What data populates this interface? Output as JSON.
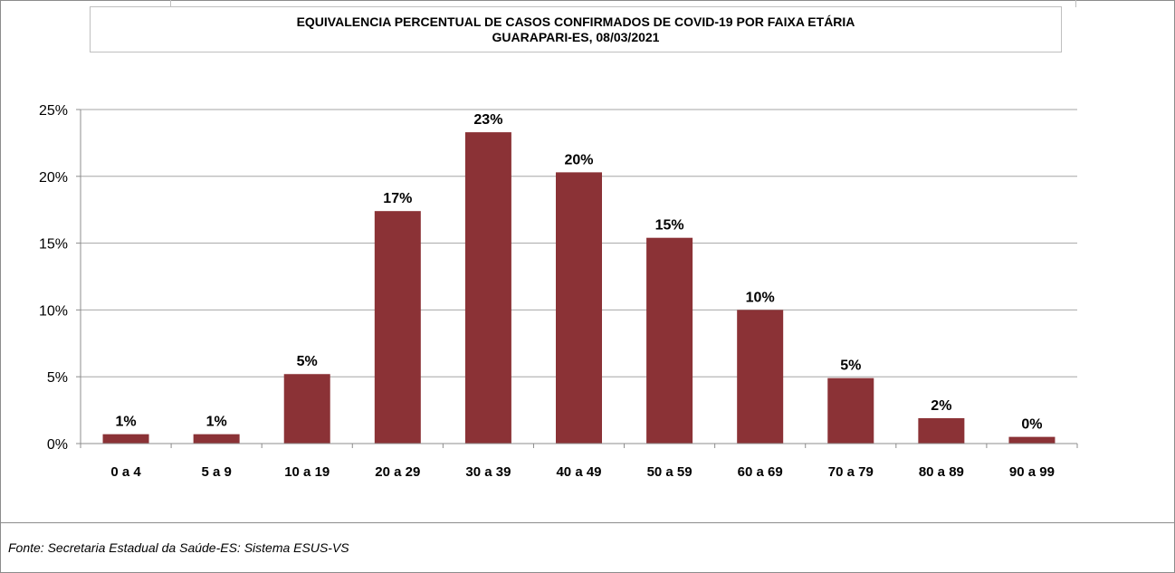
{
  "title_line1": "EQUIVALENCIA PERCENTUAL DE CASOS CONFIRMADOS DE COVID-19 POR FAIXA ETÁRIA",
  "title_line2": "GUARAPARI-ES, 08/03/2021",
  "source": "Fonte: Secretaria Estadual da Saúde-ES: Sistema ESUS-VS",
  "colors": {
    "bar": "#8B3236",
    "grid": "#a6a6a6",
    "axis": "#8c8c8c"
  },
  "chart_data": {
    "type": "bar",
    "title": "EQUIVALENCIA PERCENTUAL DE CASOS CONFIRMADOS DE COVID-19 POR FAIXA ETÁRIA",
    "subtitle": "GUARAPARI-ES, 08/03/2021",
    "xlabel": "",
    "ylabel": "",
    "categories": [
      "0 a 4",
      "5 a 9",
      "10 a 19",
      "20 a 29",
      "30 a 39",
      "40 a 49",
      "50 a 59",
      "60 a 69",
      "70 a 79",
      "80 a 89",
      "90 a 99"
    ],
    "values": [
      0.7,
      0.7,
      5.2,
      17.4,
      23.3,
      20.3,
      15.4,
      10.0,
      4.9,
      1.9,
      0.5
    ],
    "data_labels": [
      "1%",
      "1%",
      "5%",
      "17%",
      "23%",
      "20%",
      "15%",
      "10%",
      "5%",
      "2%",
      "0%"
    ],
    "yticks": [
      0,
      5,
      10,
      15,
      20,
      25
    ],
    "ytick_labels": [
      "0%",
      "5%",
      "10%",
      "15%",
      "20%",
      "25%"
    ],
    "ylim": [
      0,
      25
    ],
    "grid": true,
    "legend": "none"
  }
}
